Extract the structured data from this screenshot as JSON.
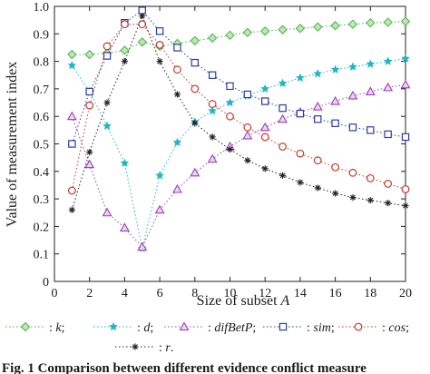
{
  "chart_data": {
    "type": "line",
    "xlabel": "Size of subset ",
    "xlabel_var": "A",
    "ylabel": "Value of measurement index",
    "xlim": [
      0,
      20
    ],
    "ylim": [
      0,
      1.0
    ],
    "xticks": [
      0,
      2,
      4,
      6,
      8,
      10,
      12,
      14,
      16,
      18,
      20
    ],
    "yticks": [
      0,
      0.1,
      0.2,
      0.3,
      0.4,
      0.5,
      0.6,
      0.7,
      0.8,
      0.9,
      1.0
    ],
    "ytick_labels": [
      "0",
      "0.1",
      "0.2",
      "0.3",
      "0.4",
      "0.5",
      "0.6",
      "0.7",
      "0.8",
      "0.9",
      "1.0"
    ],
    "grid": false,
    "legend_position": "bottom",
    "x": [
      1,
      2,
      3,
      4,
      5,
      6,
      7,
      8,
      9,
      10,
      11,
      12,
      13,
      14,
      15,
      16,
      17,
      18,
      19,
      20
    ],
    "series": [
      {
        "name": "k",
        "label": ": k;",
        "marker": "diamond",
        "color": "#4caf50",
        "values": [
          0.825,
          0.825,
          0.83,
          0.84,
          0.87,
          0.855,
          0.865,
          0.875,
          0.885,
          0.895,
          0.905,
          0.91,
          0.915,
          0.92,
          0.925,
          0.93,
          0.935,
          0.94,
          0.942,
          0.945
        ]
      },
      {
        "name": "d",
        "label": ": d;",
        "marker": "star",
        "color": "#1fb5c9",
        "values": [
          0.785,
          0.69,
          0.565,
          0.43,
          0.12,
          0.385,
          0.505,
          0.58,
          0.62,
          0.65,
          0.675,
          0.7,
          0.72,
          0.74,
          0.755,
          0.77,
          0.78,
          0.79,
          0.8,
          0.81
        ]
      },
      {
        "name": "difBetP",
        "label": ": difBetP;",
        "marker": "triangle",
        "color": "#9c3fb8",
        "values": [
          0.6,
          0.425,
          0.25,
          0.195,
          0.125,
          0.26,
          0.335,
          0.395,
          0.445,
          0.49,
          0.53,
          0.56,
          0.59,
          0.615,
          0.635,
          0.655,
          0.675,
          0.69,
          0.705,
          0.715
        ]
      },
      {
        "name": "sim",
        "label": ": sim;",
        "marker": "square",
        "color": "#2b3c9e",
        "values": [
          0.5,
          0.69,
          0.82,
          0.94,
          0.985,
          0.91,
          0.85,
          0.795,
          0.75,
          0.71,
          0.68,
          0.655,
          0.63,
          0.61,
          0.59,
          0.575,
          0.56,
          0.55,
          0.535,
          0.525
        ]
      },
      {
        "name": "cos",
        "label": ": cos;",
        "marker": "circle",
        "color": "#c0392b",
        "values": [
          0.33,
          0.64,
          0.855,
          0.935,
          0.935,
          0.86,
          0.77,
          0.7,
          0.645,
          0.6,
          0.56,
          0.525,
          0.49,
          0.465,
          0.44,
          0.415,
          0.395,
          0.375,
          0.355,
          0.335
        ]
      },
      {
        "name": "r",
        "label": ": r.",
        "marker": "asterisk",
        "color": "#222222",
        "values": [
          0.26,
          0.47,
          0.65,
          0.8,
          0.965,
          0.8,
          0.68,
          0.575,
          0.525,
          0.48,
          0.44,
          0.41,
          0.385,
          0.36,
          0.34,
          0.32,
          0.305,
          0.295,
          0.285,
          0.275
        ]
      }
    ]
  },
  "caption_visible": "Fig. 1   Comparison between different evidence conflict measure"
}
